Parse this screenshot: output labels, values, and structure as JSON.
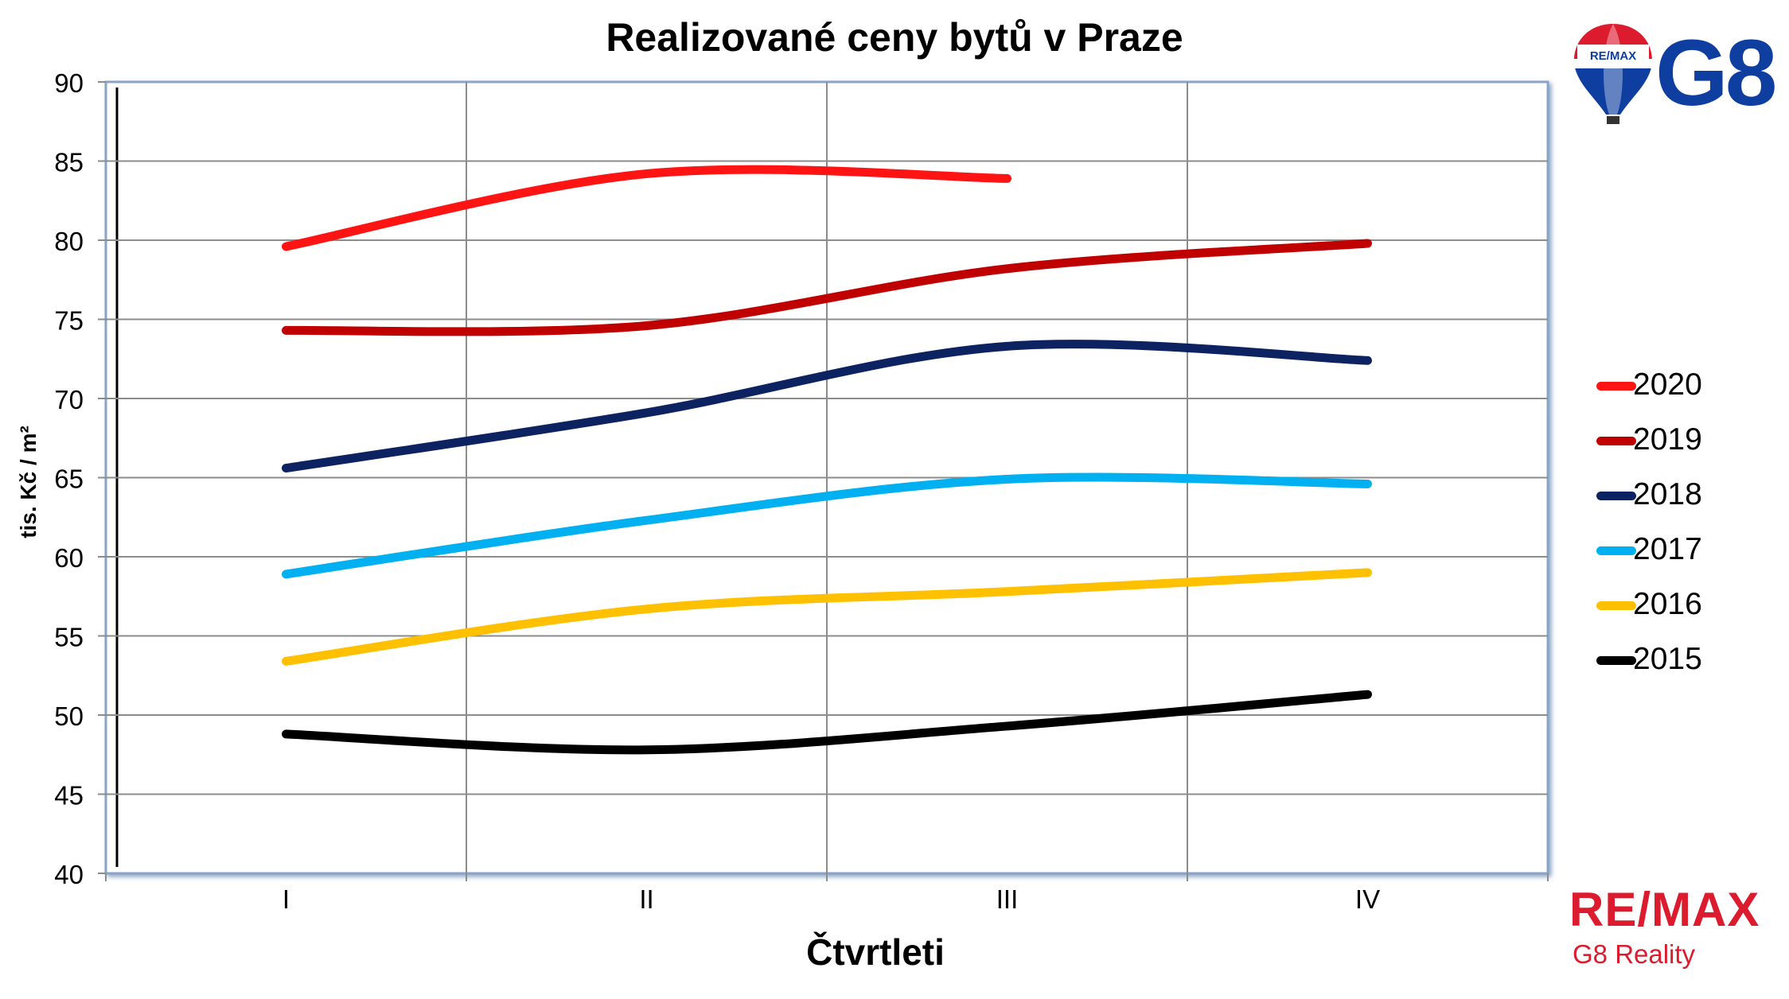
{
  "chart_data": {
    "type": "line",
    "title": "Realizované ceny bytů v Praze",
    "xlabel": "Čtvrtleti",
    "ylabel": "tis. Kč / m²",
    "categories": [
      "I",
      "II",
      "III",
      "IV"
    ],
    "ylim": [
      40,
      90
    ],
    "yticks": [
      40,
      45,
      50,
      55,
      60,
      65,
      70,
      75,
      80,
      85,
      90
    ],
    "grid": true,
    "legend_position": "right",
    "series": [
      {
        "name": "2020",
        "color": "#ff1414",
        "values": [
          79.6,
          84.2,
          83.9,
          null
        ]
      },
      {
        "name": "2019",
        "color": "#c00000",
        "values": [
          74.3,
          74.6,
          78.2,
          79.8
        ]
      },
      {
        "name": "2018",
        "color": "#0d2261",
        "values": [
          65.6,
          69.1,
          73.3,
          72.4
        ]
      },
      {
        "name": "2017",
        "color": "#00b0f0",
        "values": [
          58.9,
          62.3,
          64.9,
          64.6
        ]
      },
      {
        "name": "2016",
        "color": "#ffc000",
        "values": [
          53.4,
          56.7,
          57.8,
          59.0
        ]
      },
      {
        "name": "2015",
        "color": "#000000",
        "values": [
          48.8,
          47.8,
          49.3,
          51.3
        ]
      }
    ]
  },
  "logos": {
    "top_balloon_text": "RE/MAX",
    "top_mark": "G8",
    "bottom_brand": "RE/MAX",
    "bottom_sub": "G8 Reality"
  }
}
